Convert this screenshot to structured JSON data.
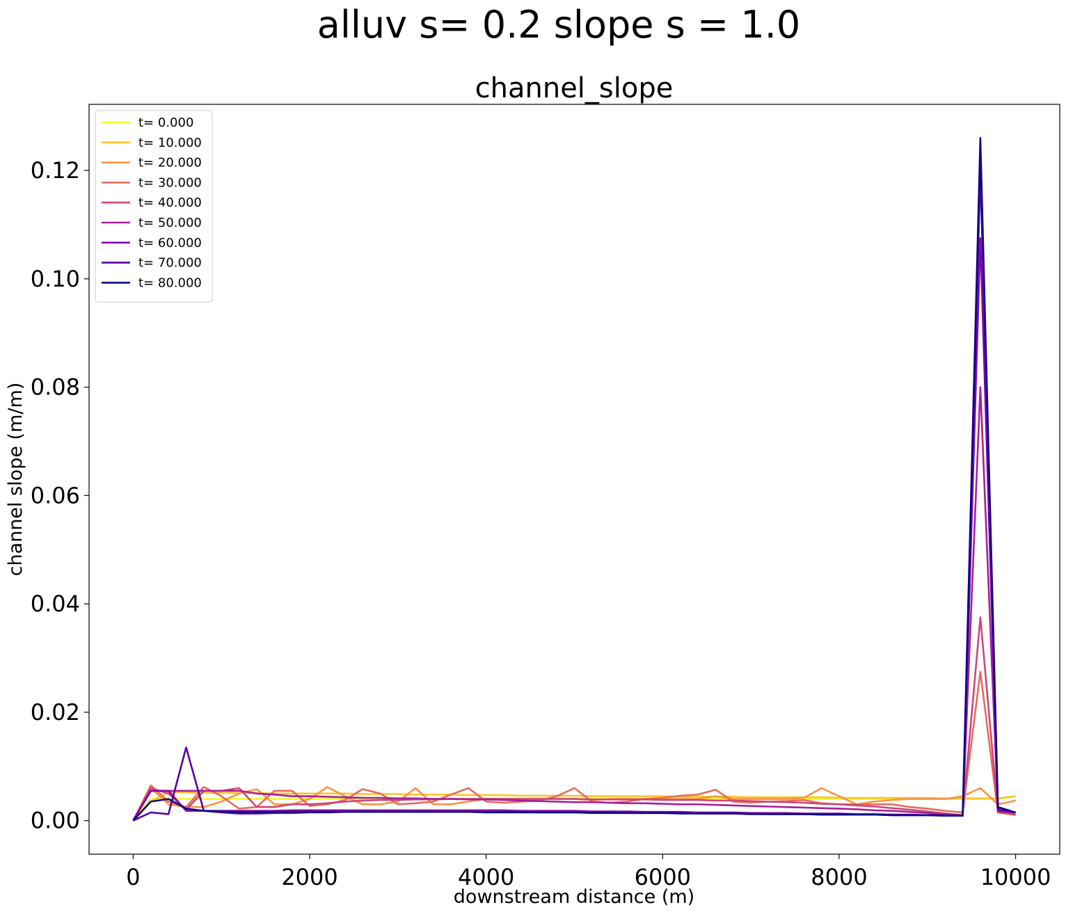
{
  "suptitle": "alluv s= 0.2     slope s = 1.0",
  "chart_data": {
    "type": "line",
    "title": "channel_slope",
    "xlabel": "downstream distance (m)",
    "ylabel": "channel slope (m/m)",
    "xlim": [
      -500,
      10500
    ],
    "ylim": [
      -0.0062,
      0.1322
    ],
    "xticks": [
      0,
      2000,
      4000,
      6000,
      8000,
      10000
    ],
    "xtick_labels": [
      "0",
      "2000",
      "4000",
      "6000",
      "8000",
      "10000"
    ],
    "yticks": [
      0.0,
      0.02,
      0.04,
      0.06,
      0.08,
      0.1,
      0.12
    ],
    "ytick_labels": [
      "0.00",
      "0.02",
      "0.04",
      "0.06",
      "0.08",
      "0.10",
      "0.12"
    ],
    "grid": false,
    "legend_position": "upper-left",
    "x": [
      0,
      200,
      400,
      600,
      800,
      1000,
      1200,
      1400,
      1600,
      1800,
      2000,
      2200,
      2400,
      2600,
      2800,
      3000,
      3200,
      3400,
      3600,
      3800,
      4000,
      4200,
      4400,
      4600,
      4800,
      5000,
      5200,
      5400,
      5600,
      5800,
      6000,
      6200,
      6400,
      6600,
      6800,
      7000,
      7200,
      7400,
      7600,
      7800,
      8000,
      8200,
      8400,
      8600,
      8800,
      9000,
      9200,
      9400,
      9600,
      9800,
      10000
    ],
    "series": [
      {
        "name": "t= 0.000",
        "color": "#f0f921",
        "values": [
          0.0,
          0.004,
          0.004,
          0.004,
          0.004,
          0.004,
          0.004,
          0.004,
          0.004,
          0.004,
          0.004,
          0.004,
          0.004,
          0.004,
          0.004,
          0.004,
          0.004,
          0.004,
          0.004,
          0.004,
          0.004,
          0.004,
          0.004,
          0.004,
          0.004,
          0.004,
          0.004,
          0.004,
          0.004,
          0.004,
          0.004,
          0.004,
          0.004,
          0.004,
          0.004,
          0.004,
          0.004,
          0.004,
          0.004,
          0.004,
          0.004,
          0.004,
          0.004,
          0.004,
          0.004,
          0.004,
          0.004,
          0.004,
          0.004,
          0.004,
          0.0045
        ]
      },
      {
        "name": "t= 10.000",
        "color": "#fdc328",
        "values": [
          0.0,
          0.0035,
          0.0052,
          0.0052,
          0.0051,
          0.0051,
          0.0051,
          0.0051,
          0.005,
          0.005,
          0.005,
          0.005,
          0.005,
          0.0049,
          0.0049,
          0.0049,
          0.0048,
          0.0048,
          0.0048,
          0.0047,
          0.0047,
          0.0047,
          0.0046,
          0.0046,
          0.0046,
          0.0046,
          0.0045,
          0.0045,
          0.0045,
          0.0045,
          0.0045,
          0.0044,
          0.0044,
          0.0044,
          0.0044,
          0.0043,
          0.0043,
          0.0043,
          0.0043,
          0.0043,
          0.0042,
          0.0042,
          0.0042,
          0.0042,
          0.0042,
          0.0042,
          0.0041,
          0.0041,
          0.0041,
          0.0041,
          0.0045
        ]
      },
      {
        "name": "t= 20.000",
        "color": "#f89441",
        "values": [
          0.0,
          0.006,
          0.003,
          0.0025,
          0.0025,
          0.0035,
          0.005,
          0.0058,
          0.003,
          0.003,
          0.004,
          0.0062,
          0.0045,
          0.003,
          0.003,
          0.0035,
          0.006,
          0.003,
          0.003,
          0.0035,
          0.004,
          0.004,
          0.004,
          0.004,
          0.004,
          0.004,
          0.0038,
          0.004,
          0.004,
          0.004,
          0.004,
          0.004,
          0.004,
          0.0045,
          0.004,
          0.004,
          0.004,
          0.004,
          0.0042,
          0.006,
          0.0045,
          0.003,
          0.0035,
          0.0038,
          0.004,
          0.004,
          0.004,
          0.0045,
          0.006,
          0.003,
          0.0037
        ]
      },
      {
        "name": "t= 30.000",
        "color": "#e56b5d",
        "values": [
          0.0,
          0.0065,
          0.0035,
          0.0025,
          0.0062,
          0.0045,
          0.0022,
          0.0025,
          0.0055,
          0.0055,
          0.0027,
          0.003,
          0.0038,
          0.0058,
          0.005,
          0.003,
          0.0032,
          0.0035,
          0.0048,
          0.006,
          0.0035,
          0.0033,
          0.0035,
          0.0037,
          0.0045,
          0.006,
          0.0035,
          0.0033,
          0.0035,
          0.004,
          0.0042,
          0.0046,
          0.0048,
          0.0057,
          0.0035,
          0.0033,
          0.0035,
          0.0036,
          0.0038,
          0.0032,
          0.003,
          0.003,
          0.003,
          0.003,
          0.0025,
          0.0022,
          0.0018,
          0.0015,
          0.0275,
          0.0015,
          0.001
        ]
      },
      {
        "name": "t= 40.000",
        "color": "#cb4778",
        "values": [
          0.0,
          0.006,
          0.005,
          0.002,
          0.0055,
          0.0055,
          0.006,
          0.0025,
          0.0025,
          0.003,
          0.003,
          0.0032,
          0.0035,
          0.0037,
          0.0038,
          0.0038,
          0.0039,
          0.0039,
          0.004,
          0.004,
          0.004,
          0.004,
          0.004,
          0.004,
          0.004,
          0.004,
          0.0039,
          0.0039,
          0.0039,
          0.0039,
          0.0038,
          0.0038,
          0.0038,
          0.0037,
          0.0037,
          0.0036,
          0.0035,
          0.0034,
          0.0033,
          0.0031,
          0.003,
          0.0028,
          0.0026,
          0.0023,
          0.002,
          0.0017,
          0.0013,
          0.001,
          0.0375,
          0.0015,
          0.0012
        ]
      },
      {
        "name": "t= 50.000",
        "color": "#a62098",
        "values": [
          0.0,
          0.0055,
          0.0055,
          0.0055,
          0.0055,
          0.0055,
          0.0055,
          0.005,
          0.0048,
          0.0045,
          0.0045,
          0.0044,
          0.0043,
          0.0042,
          0.0042,
          0.0041,
          0.0041,
          0.004,
          0.004,
          0.0039,
          0.0039,
          0.0038,
          0.0037,
          0.0036,
          0.0035,
          0.0034,
          0.0034,
          0.0033,
          0.0032,
          0.0032,
          0.0031,
          0.003,
          0.003,
          0.0029,
          0.0028,
          0.0027,
          0.0026,
          0.0025,
          0.0024,
          0.0023,
          0.0022,
          0.0021,
          0.0019,
          0.0018,
          0.0016,
          0.0014,
          0.0012,
          0.001,
          0.08,
          0.0018,
          0.0015
        ]
      },
      {
        "name": "t= 60.000",
        "color": "#8405a7",
        "values": [
          0.0,
          0.0055,
          0.0055,
          0.0018,
          0.0018,
          0.0018,
          0.0018,
          0.0018,
          0.0018,
          0.0019,
          0.0019,
          0.0019,
          0.0019,
          0.0019,
          0.0019,
          0.0019,
          0.0019,
          0.0019,
          0.0019,
          0.0019,
          0.0019,
          0.0019,
          0.0018,
          0.0018,
          0.0018,
          0.0018,
          0.0017,
          0.0017,
          0.0017,
          0.0016,
          0.0016,
          0.0016,
          0.0015,
          0.0015,
          0.0015,
          0.0014,
          0.0014,
          0.0014,
          0.0013,
          0.0013,
          0.0013,
          0.0012,
          0.0012,
          0.0011,
          0.0011,
          0.001,
          0.001,
          0.0009,
          0.1075,
          0.0018,
          0.0015
        ]
      },
      {
        "name": "t= 70.000",
        "color": "#5601a4",
        "values": [
          0.0,
          0.0015,
          0.0012,
          0.0135,
          0.0018,
          0.0015,
          0.0013,
          0.0013,
          0.0014,
          0.0014,
          0.0015,
          0.0015,
          0.0016,
          0.0016,
          0.0016,
          0.0016,
          0.0016,
          0.0016,
          0.0016,
          0.0016,
          0.0016,
          0.0016,
          0.0016,
          0.0015,
          0.0015,
          0.0015,
          0.0015,
          0.0015,
          0.0014,
          0.0014,
          0.0014,
          0.0014,
          0.0013,
          0.0013,
          0.0013,
          0.0013,
          0.0012,
          0.0012,
          0.0012,
          0.0011,
          0.0011,
          0.0011,
          0.0011,
          0.001,
          0.001,
          0.001,
          0.0009,
          0.0009,
          0.12,
          0.0022,
          0.0015
        ]
      },
      {
        "name": "t= 80.000",
        "color": "#0d0887",
        "values": [
          0.0,
          0.0035,
          0.004,
          0.0022,
          0.0018,
          0.0017,
          0.0016,
          0.0016,
          0.0016,
          0.0016,
          0.0016,
          0.0016,
          0.0016,
          0.0016,
          0.0016,
          0.0016,
          0.0016,
          0.0016,
          0.0016,
          0.0016,
          0.0015,
          0.0015,
          0.0015,
          0.0015,
          0.0015,
          0.0015,
          0.0014,
          0.0014,
          0.0014,
          0.0014,
          0.0014,
          0.0013,
          0.0013,
          0.0013,
          0.0013,
          0.0012,
          0.0012,
          0.0012,
          0.0012,
          0.0011,
          0.0011,
          0.0011,
          0.0011,
          0.001,
          0.001,
          0.001,
          0.0009,
          0.0009,
          0.126,
          0.0025,
          0.0015
        ]
      }
    ]
  }
}
